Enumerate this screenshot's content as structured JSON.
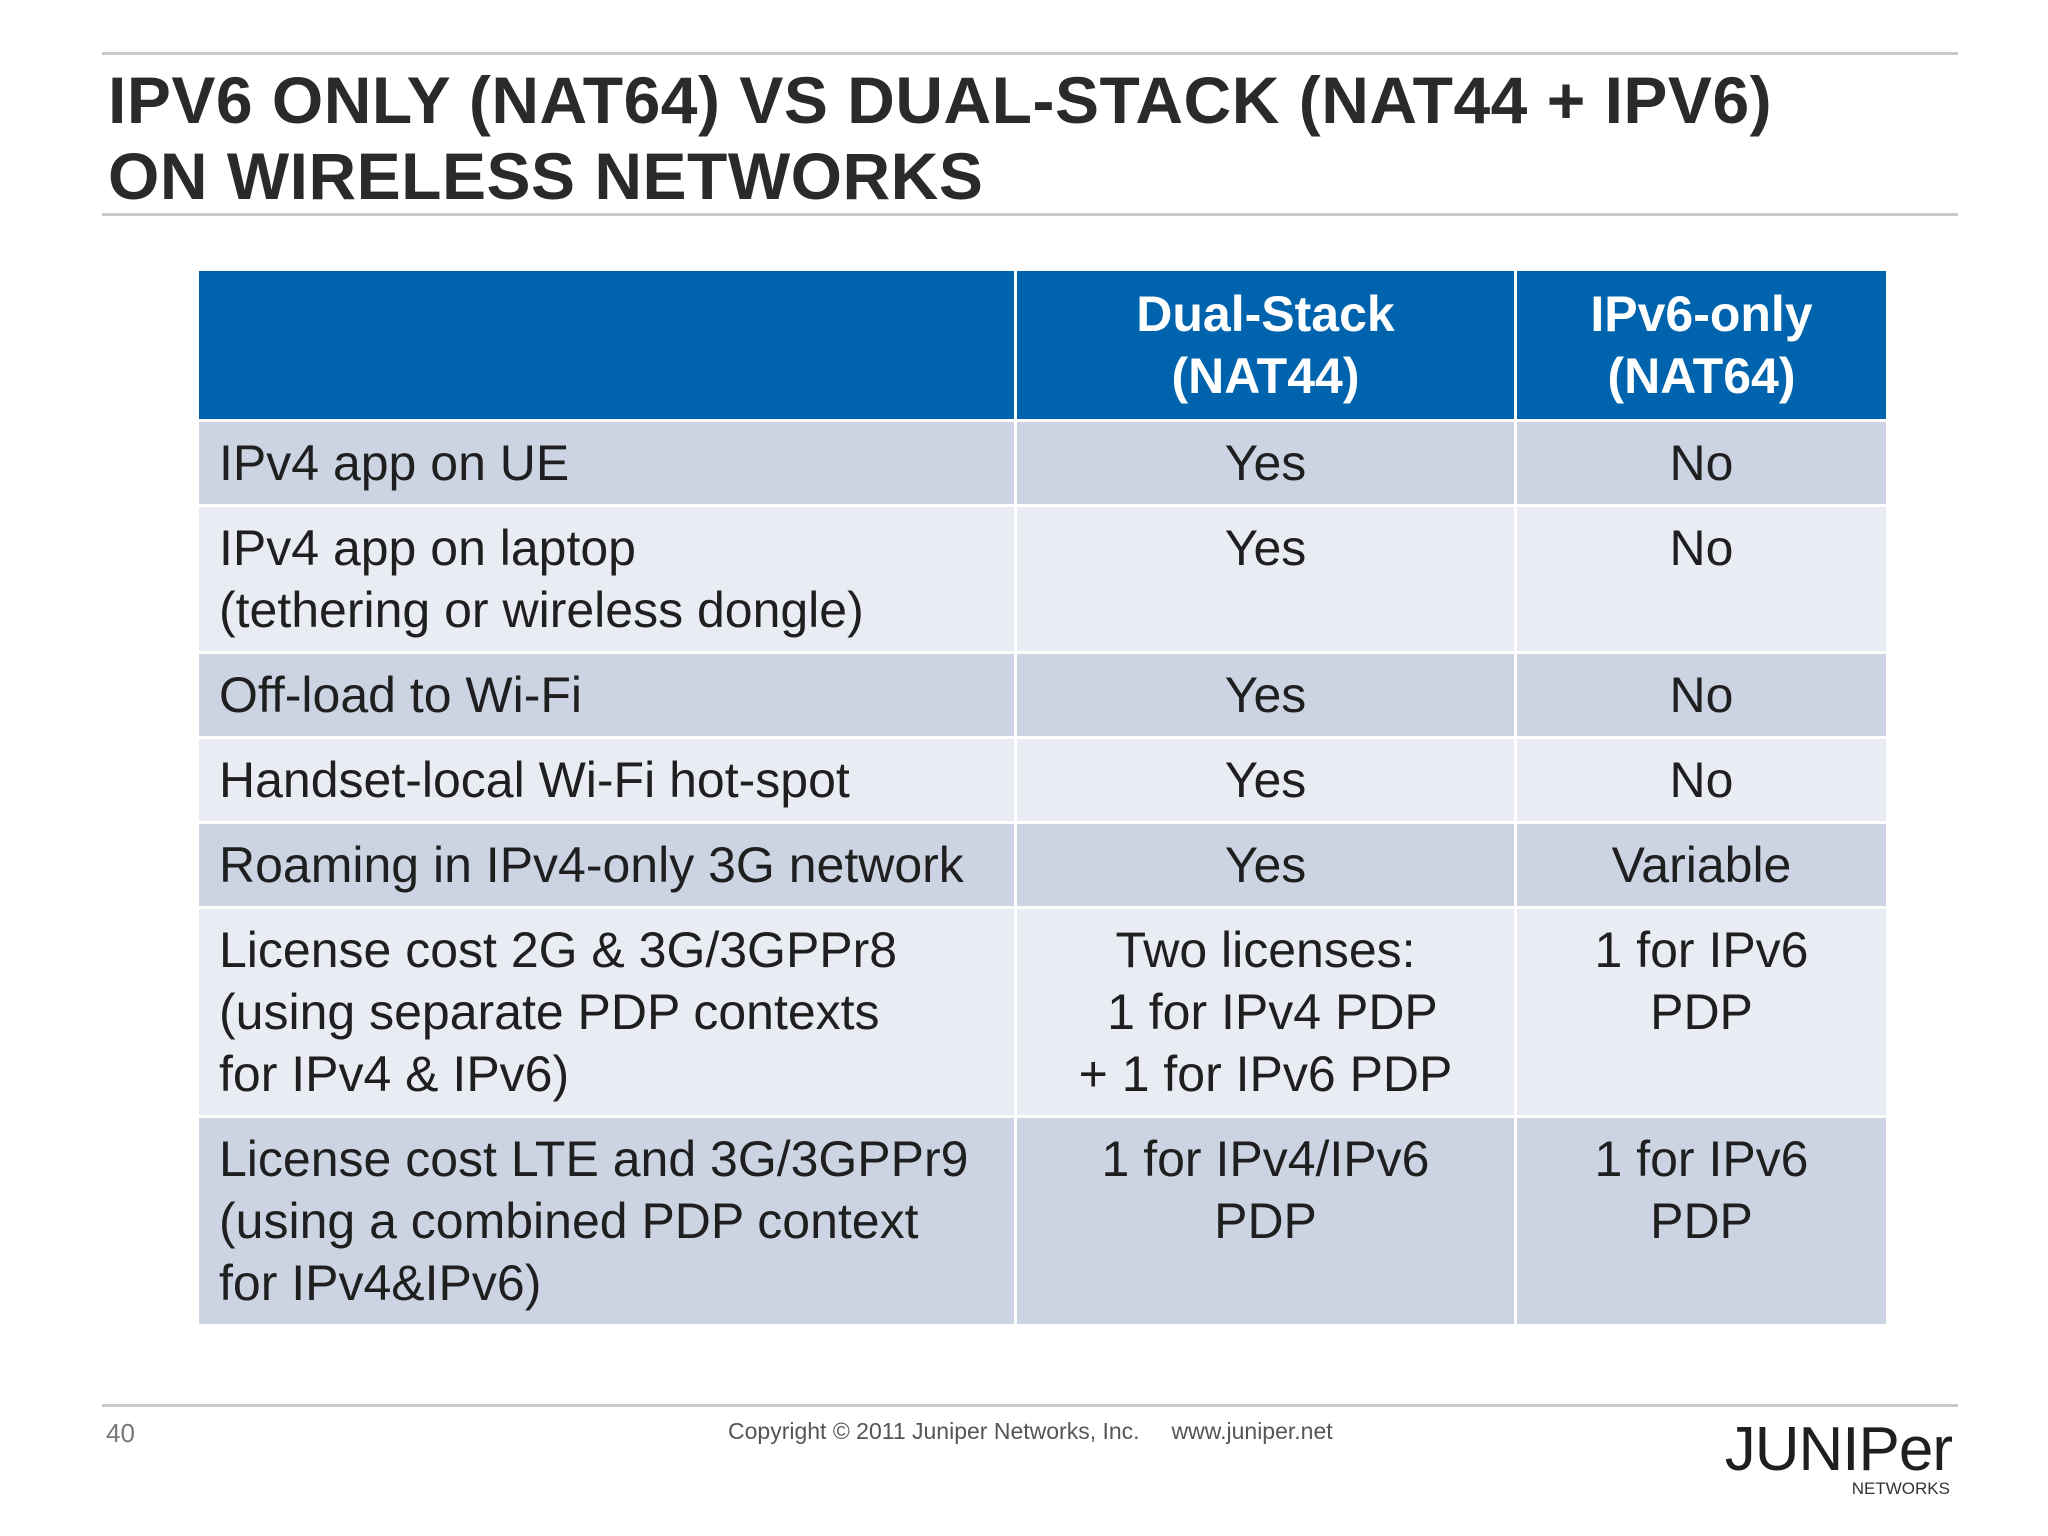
{
  "slide": {
    "title_line1": "IPV6 ONLY (NAT64) VS DUAL-STACK (NAT44 + IPV6)",
    "title_line2": "ON WIRELESS NETWORKS"
  },
  "table": {
    "headers": [
      "",
      "Dual-Stack\n(NAT44)",
      "IPv6-only\n(NAT64)"
    ],
    "rows": [
      {
        "feature": "IPv4 app on UE",
        "dual_stack": "Yes",
        "ipv6_only": "No"
      },
      {
        "feature": "IPv4 app on laptop\n(tethering or wireless dongle)",
        "dual_stack": "Yes",
        "ipv6_only": "No"
      },
      {
        "feature": "Off-load to Wi-Fi",
        "dual_stack": "Yes",
        "ipv6_only": "No"
      },
      {
        "feature": "Handset-local Wi-Fi hot-spot",
        "dual_stack": "Yes",
        "ipv6_only": "No"
      },
      {
        "feature": "Roaming in IPv4-only 3G network",
        "dual_stack": "Yes",
        "ipv6_only": "Variable"
      },
      {
        "feature": "License cost 2G & 3G/3GPPr8\n(using separate PDP contexts\nfor IPv4 & IPv6)",
        "dual_stack": "Two licenses:\n 1 for IPv4 PDP\n+ 1 for IPv6 PDP",
        "ipv6_only": "1 for IPv6\nPDP"
      },
      {
        "feature": "License cost LTE and 3G/3GPPr9\n(using a combined PDP context\nfor IPv4&IPv6)",
        "dual_stack": "1 for IPv4/IPv6\nPDP",
        "ipv6_only": "1 for IPv6\nPDP"
      }
    ]
  },
  "footer": {
    "page_number": "40",
    "copyright": "Copyright © 2011 Juniper Networks, Inc.",
    "website": "www.juniper.net"
  },
  "logo": {
    "wordmark": "JUNIPer",
    "subtext": "NETWORKS"
  },
  "colors": {
    "header_blue": "#0063ad",
    "row_dark": "#ccd4e3",
    "row_light": "#e9ecf2",
    "title_text": "#2a2a2a"
  }
}
